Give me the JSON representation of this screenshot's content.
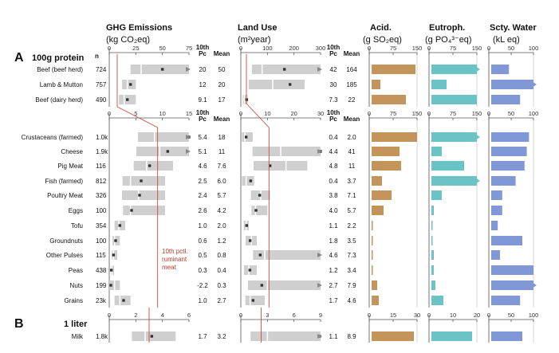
{
  "chart_data": {
    "type": "bar",
    "colors": {
      "box": "#cfcfcf",
      "median": "#ffffff",
      "mean": "#333333",
      "acid": "#c4955a",
      "eutroph": "#6cc3c6",
      "water": "#8099d6",
      "threshold": "#d04a3a",
      "axis": "#555555"
    },
    "headers": {
      "ghg": [
        "GHG Emissions",
        "(kg CO₂eq)"
      ],
      "land": [
        "Land Use",
        "(m²year)"
      ],
      "acid": [
        "Acid.",
        "(g SO₂eq)"
      ],
      "eutroph": [
        "Eutroph.",
        "(g PO₄³⁻eq)"
      ],
      "water": [
        "Scty. Water",
        "(kL eq)"
      ],
      "pc_label": "10th Pc",
      "mean_label": "Mean",
      "n_label": "n"
    },
    "sections": [
      {
        "id": "A",
        "letter": "A",
        "title": "100g protein"
      },
      {
        "id": "B",
        "letter": "B",
        "title": "1 liter"
      }
    ],
    "annotation": [
      "10th pctl.",
      "ruminant",
      "meat"
    ],
    "groups": [
      {
        "name": "ruminant",
        "ghg_axis": {
          "ticks": [
            0,
            25,
            50,
            75
          ],
          "max": 75
        },
        "land_axis": {
          "ticks": [
            0,
            100,
            200,
            300
          ],
          "max": 300
        },
        "acid_axis": {
          "ticks": [
            0,
            75,
            150
          ],
          "max": 150
        },
        "eutroph_axis": {
          "ticks": [
            0,
            75,
            150
          ],
          "max": 150
        },
        "water_axis": {
          "ticks": [
            0,
            50,
            100
          ],
          "max": 100
        },
        "items": [
          {
            "label": "Beef (beef herd)",
            "n": "724",
            "ghg": {
              "box": [
                20,
                75
              ],
              "median": 30,
              "mean": 50,
              "arrow": true
            },
            "ghg_pc": "20",
            "ghg_mean": "50",
            "land": {
              "box": [
                42,
                300
              ],
              "median": 80,
              "mean": 164,
              "arrow": true
            },
            "land_pc": "42",
            "land_mean": "164",
            "acid": 145,
            "eutroph": 150,
            "eutroph_arrow": true,
            "water": 45
          },
          {
            "label": "Lamb & Mutton",
            "n": "757",
            "ghg": {
              "box": [
                12,
                25
              ],
              "median": 17,
              "mean": 20
            },
            "ghg_pc": "12",
            "ghg_mean": "20",
            "land": {
              "box": [
                30,
                240
              ],
              "median": 120,
              "mean": 185
            },
            "land_pc": "30",
            "land_mean": "185",
            "acid": 35,
            "eutroph": 55,
            "water": 100,
            "water_arrow": true
          },
          {
            "label": "Beef (dairy herd)",
            "n": "490",
            "ghg": {
              "box": [
                9.1,
                25
              ],
              "median": 14,
              "mean": 17
            },
            "ghg_pc": "9.1",
            "ghg_mean": "17",
            "land": {
              "box": [
                7.3,
                25
              ],
              "median": 13,
              "mean": 22
            },
            "land_pc": "7.3",
            "land_mean": "22",
            "acid": 115,
            "eutroph": 150,
            "water": 70
          }
        ]
      },
      {
        "name": "other",
        "ghg_axis": {
          "ticks": [
            0,
            5,
            10,
            15
          ],
          "max": 15
        },
        "land_axis": {
          "ticks": [
            0,
            10,
            20,
            30
          ],
          "max": 30
        },
        "acid_axis": {
          "ticks": [
            0,
            75,
            150
          ],
          "max": 150
        },
        "eutroph_axis": {
          "ticks": [
            0,
            75,
            150
          ],
          "max": 150
        },
        "water_axis": {
          "ticks": [
            0,
            50,
            100
          ],
          "max": 100
        },
        "items": [
          {
            "label": "Crustaceans (farmed)",
            "n": "1.0k",
            "ghg": {
              "box": [
                5.4,
                15
              ],
              "median": 8.5,
              "mean": 18,
              "arrow": true
            },
            "ghg_pc": "5.4",
            "ghg_mean": "18",
            "land": {
              "box": [
                0.4,
                4.5
              ],
              "median": 1.5,
              "mean": 2
            },
            "land_pc": "0.4",
            "land_mean": "2.0",
            "acid": 150,
            "eutroph": 150,
            "eutroph_arrow": true,
            "water": 90
          },
          {
            "label": "Cheese",
            "n": "1.9k",
            "ghg": {
              "box": [
                5.1,
                15
              ],
              "median": 9.5,
              "mean": 11,
              "arrow": true
            },
            "ghg_pc": "5.1",
            "ghg_mean": "11",
            "land": {
              "box": [
                4.4,
                30
              ],
              "median": 15,
              "mean": 41,
              "arrow": true
            },
            "land_pc": "4.4",
            "land_mean": "41",
            "acid": 95,
            "eutroph": 40,
            "water": 85
          },
          {
            "label": "Pig Meat",
            "n": "116",
            "ghg": {
              "box": [
                4.6,
                12
              ],
              "median": 7,
              "mean": 7.6
            },
            "ghg_pc": "4.6",
            "ghg_mean": "7.6",
            "land": {
              "box": [
                4.8,
                25
              ],
              "median": 17,
              "mean": 11
            },
            "land_pc": "4.8",
            "land_mean": "11",
            "acid": 100,
            "eutroph": 110,
            "water": 80
          },
          {
            "label": "Fish (farmed)",
            "n": "812",
            "ghg": {
              "box": [
                2.5,
                10.5
              ],
              "median": 4,
              "mean": 6
            },
            "ghg_pc": "2.5",
            "ghg_mean": "6.0",
            "land": {
              "box": [
                0.4,
                5
              ],
              "median": 2,
              "mean": 3.7
            },
            "land_pc": "0.4",
            "land_mean": "3.7",
            "acid": 40,
            "eutroph": 150,
            "eutroph_arrow": true,
            "water": 60
          },
          {
            "label": "Poultry Meat",
            "n": "326",
            "ghg": {
              "box": [
                2.4,
                10.5
              ],
              "median": 5.5,
              "mean": 5.7
            },
            "ghg_pc": "2.4",
            "ghg_mean": "5.7",
            "land": {
              "box": [
                3.8,
                11
              ],
              "median": 7.5,
              "mean": 7.1
            },
            "land_pc": "3.8",
            "land_mean": "7.1",
            "acid": 70,
            "eutroph": 40,
            "water": 30
          },
          {
            "label": "Eggs",
            "n": "100",
            "ghg": {
              "box": [
                2.6,
                10.5
              ],
              "median": 4,
              "mean": 4.2
            },
            "ghg_pc": "2.6",
            "ghg_mean": "4.2",
            "land": {
              "box": [
                4,
                10
              ],
              "median": 5.5,
              "mean": 5.7
            },
            "land_pc": "4.0",
            "land_mean": "5.7",
            "acid": 45,
            "eutroph": 15,
            "water": 30
          },
          {
            "label": "Tofu",
            "n": "354",
            "ghg": {
              "box": [
                1,
                3
              ],
              "median": 1.8,
              "mean": 2
            },
            "ghg_pc": "1.0",
            "ghg_mean": "2.0",
            "land": {
              "box": [
                1.1,
                3
              ],
              "median": 2,
              "mean": 2.2
            },
            "land_pc": "1.1",
            "land_mean": "2.2",
            "acid": 5,
            "eutroph": 5,
            "water": 20
          },
          {
            "label": "Groundnuts",
            "n": "100",
            "ghg": {
              "box": [
                0.6,
                2
              ],
              "median": 1,
              "mean": 1.2
            },
            "ghg_pc": "0.6",
            "ghg_mean": "1.2",
            "land": {
              "box": [
                1.8,
                6
              ],
              "median": 4,
              "mean": 3.5
            },
            "land_pc": "1.8",
            "land_mean": "3.5",
            "acid": 5,
            "eutroph": 5,
            "water": 75
          },
          {
            "label": "Other Pulses",
            "n": "115",
            "ghg": {
              "box": [
                0.5,
                1.5
              ],
              "median": 0.8,
              "mean": 0.8
            },
            "ghg_pc": "0.5",
            "ghg_mean": "0.8",
            "land": {
              "box": [
                4.6,
                30
              ],
              "median": 9,
              "mean": 7.3,
              "arrow": true
            },
            "land_pc": "4.6",
            "land_mean": "7.3",
            "acid": 10,
            "eutroph": 15,
            "water": 25
          },
          {
            "label": "Peas",
            "n": "438",
            "ghg": {
              "box": [
                0.3,
                0.9
              ],
              "median": 0.5,
              "mean": 0.4
            },
            "ghg_pc": "0.3",
            "ghg_mean": "0.4",
            "land": {
              "box": [
                1.2,
                6
              ],
              "median": 3,
              "mean": 3.4
            },
            "land_pc": "1.2",
            "land_mean": "3.4",
            "acid": 10,
            "eutroph": 15,
            "water": 100
          },
          {
            "label": "Nuts",
            "n": "199",
            "ghg": {
              "box": [
                0,
                2
              ],
              "median": 1,
              "mean": 0.3
            },
            "ghg_pc": "-2.2",
            "ghg_mean": "0.3",
            "land": {
              "box": [
                2.7,
                30
              ],
              "median": 10,
              "mean": 7.9,
              "arrow": true
            },
            "land_pc": "2.7",
            "land_mean": "7.9",
            "acid": 25,
            "eutroph": 20,
            "water": 100,
            "water_arrow": true
          },
          {
            "label": "Grains",
            "n": "23k",
            "ghg": {
              "box": [
                1,
                4
              ],
              "median": 2,
              "mean": 2.7
            },
            "ghg_pc": "1.0",
            "ghg_mean": "2.7",
            "land": {
              "box": [
                1.7,
                9
              ],
              "median": 3.5,
              "mean": 4.6
            },
            "land_pc": "1.7",
            "land_mean": "4.6",
            "acid": 30,
            "eutroph": 45,
            "water": 70
          }
        ]
      },
      {
        "name": "milk",
        "ghg_axis": {
          "ticks": [
            0,
            2,
            4,
            6
          ],
          "max": 6
        },
        "land_axis": {
          "ticks": [
            0,
            3,
            6,
            9
          ],
          "max": 9
        },
        "acid_axis": {
          "ticks": [
            0,
            15,
            30
          ],
          "max": 30
        },
        "eutroph_axis": {
          "ticks": [
            0,
            10,
            20
          ],
          "max": 20
        },
        "water_axis": {
          "ticks": [
            0,
            50,
            100
          ],
          "max": 100
        },
        "items": [
          {
            "label": "Milk",
            "n": "1.8k",
            "ghg": {
              "box": [
                1.7,
                5
              ],
              "median": 2.7,
              "mean": 3.2
            },
            "ghg_pc": "1.7",
            "ghg_mean": "3.2",
            "land": {
              "box": [
                1.1,
                9
              ],
              "median": 3,
              "mean": 8.9,
              "arrow": true
            },
            "land_pc": "1.1",
            "land_mean": "8.9",
            "acid": 28,
            "eutroph": 18,
            "water": 75
          }
        ]
      }
    ]
  }
}
